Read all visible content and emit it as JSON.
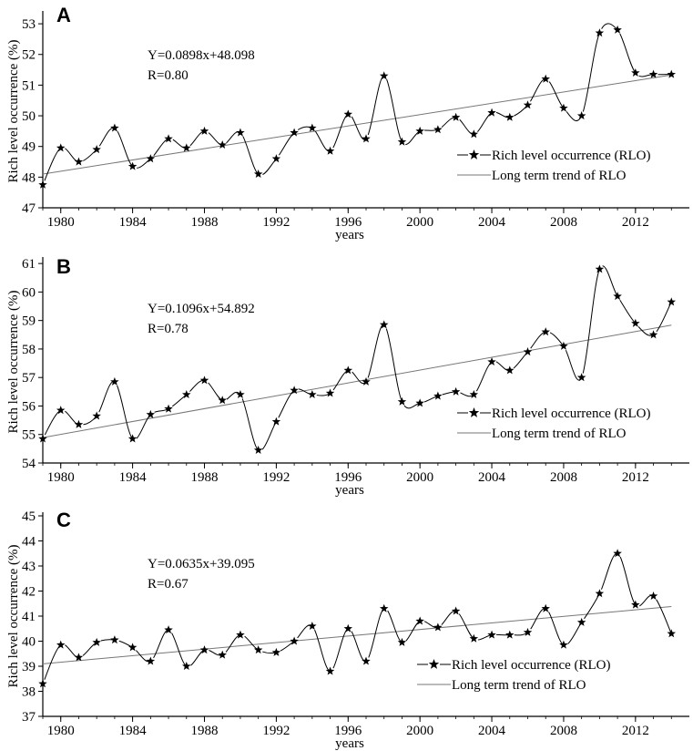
{
  "figure": {
    "years": [
      1979,
      1980,
      1981,
      1982,
      1983,
      1984,
      1985,
      1986,
      1987,
      1988,
      1989,
      1990,
      1991,
      1992,
      1993,
      1994,
      1995,
      1996,
      1997,
      1998,
      1999,
      2000,
      2001,
      2002,
      2003,
      2004,
      2005,
      2006,
      2007,
      2008,
      2009,
      2010,
      2011,
      2012,
      2013,
      2014
    ]
  },
  "chart_data": [
    {
      "type": "line",
      "panel": "A",
      "xlabel": "years",
      "ylabel": "Rich level occurrence (%)",
      "xticks": [
        1980,
        1984,
        1988,
        1992,
        1996,
        2000,
        2004,
        2008,
        2012
      ],
      "yticks": [
        47,
        48,
        49,
        50,
        51,
        52,
        53
      ],
      "xlim": [
        1979,
        2015
      ],
      "ylim": [
        47,
        53.3
      ],
      "equation": "Y=0.0898x+48.098",
      "r_text": "R=0.80",
      "legend": {
        "series": "Rich level occurrence (RLO)",
        "trend": "Long term trend of RLO",
        "placement": "lower-right"
      },
      "series": [
        {
          "name": "Rich level occurrence (RLO)",
          "values": [
            47.75,
            48.95,
            48.5,
            48.9,
            49.6,
            48.35,
            48.6,
            49.25,
            48.95,
            49.5,
            49.05,
            49.45,
            48.1,
            48.6,
            49.45,
            49.6,
            48.85,
            50.05,
            49.25,
            51.3,
            49.15,
            49.5,
            49.55,
            49.95,
            49.4,
            50.1,
            49.95,
            50.35,
            51.2,
            50.25,
            50.0,
            52.7,
            52.8,
            51.4,
            51.35,
            51.35
          ]
        }
      ],
      "trend": {
        "slope": 0.0898,
        "intercept": 48.098
      }
    },
    {
      "type": "line",
      "panel": "B",
      "xlabel": "years",
      "ylabel": "Rich level occurrence (%)",
      "xticks": [
        1980,
        1984,
        1988,
        1992,
        1996,
        2000,
        2004,
        2008,
        2012
      ],
      "yticks": [
        54,
        55,
        56,
        57,
        58,
        59,
        60,
        61
      ],
      "xlim": [
        1979,
        2015
      ],
      "ylim": [
        54,
        61.1
      ],
      "equation": "Y=0.1096x+54.892",
      "r_text": "R=0.78",
      "legend": {
        "series": "Rich level occurrence (RLO)",
        "trend": "Long term trend of RLO",
        "placement": "lower-right"
      },
      "series": [
        {
          "name": "Rich level occurrence (RLO)",
          "values": [
            54.85,
            55.85,
            55.35,
            55.65,
            56.85,
            54.85,
            55.7,
            55.9,
            56.4,
            56.9,
            56.2,
            56.4,
            54.45,
            55.45,
            56.55,
            56.4,
            56.45,
            57.25,
            56.85,
            58.85,
            56.15,
            56.1,
            56.35,
            56.5,
            56.4,
            57.55,
            57.25,
            57.9,
            58.6,
            58.1,
            57.0,
            60.8,
            59.85,
            58.9,
            58.5,
            59.65
          ]
        }
      ],
      "trend": {
        "slope": 0.1096,
        "intercept": 54.892
      }
    },
    {
      "type": "line",
      "panel": "C",
      "xlabel": "years",
      "ylabel": "Rich level occurrence (%)",
      "xticks": [
        1980,
        1984,
        1988,
        1992,
        1996,
        2000,
        2004,
        2008,
        2012
      ],
      "yticks": [
        37,
        38,
        39,
        40,
        41,
        42,
        43,
        44,
        45
      ],
      "xlim": [
        1979,
        2015
      ],
      "ylim": [
        37,
        45
      ],
      "equation": "Y=0.0635x+39.095",
      "r_text": "R=0.67",
      "legend": {
        "series": "Rich level occurrence (RLO)",
        "trend": "Long term trend of RLO",
        "placement": "lower-right"
      },
      "series": [
        {
          "name": "Rich level occurrence (RLO)",
          "values": [
            38.3,
            39.85,
            39.35,
            39.95,
            40.05,
            39.75,
            39.2,
            40.45,
            39.0,
            39.65,
            39.45,
            40.25,
            39.65,
            39.55,
            40.0,
            40.6,
            38.8,
            40.5,
            39.2,
            41.3,
            39.95,
            40.8,
            40.55,
            41.2,
            40.1,
            40.25,
            40.25,
            40.35,
            41.3,
            39.85,
            40.75,
            41.9,
            43.5,
            41.45,
            41.8,
            40.3
          ]
        }
      ],
      "trend": {
        "slope": 0.0635,
        "intercept": 39.095
      }
    }
  ]
}
